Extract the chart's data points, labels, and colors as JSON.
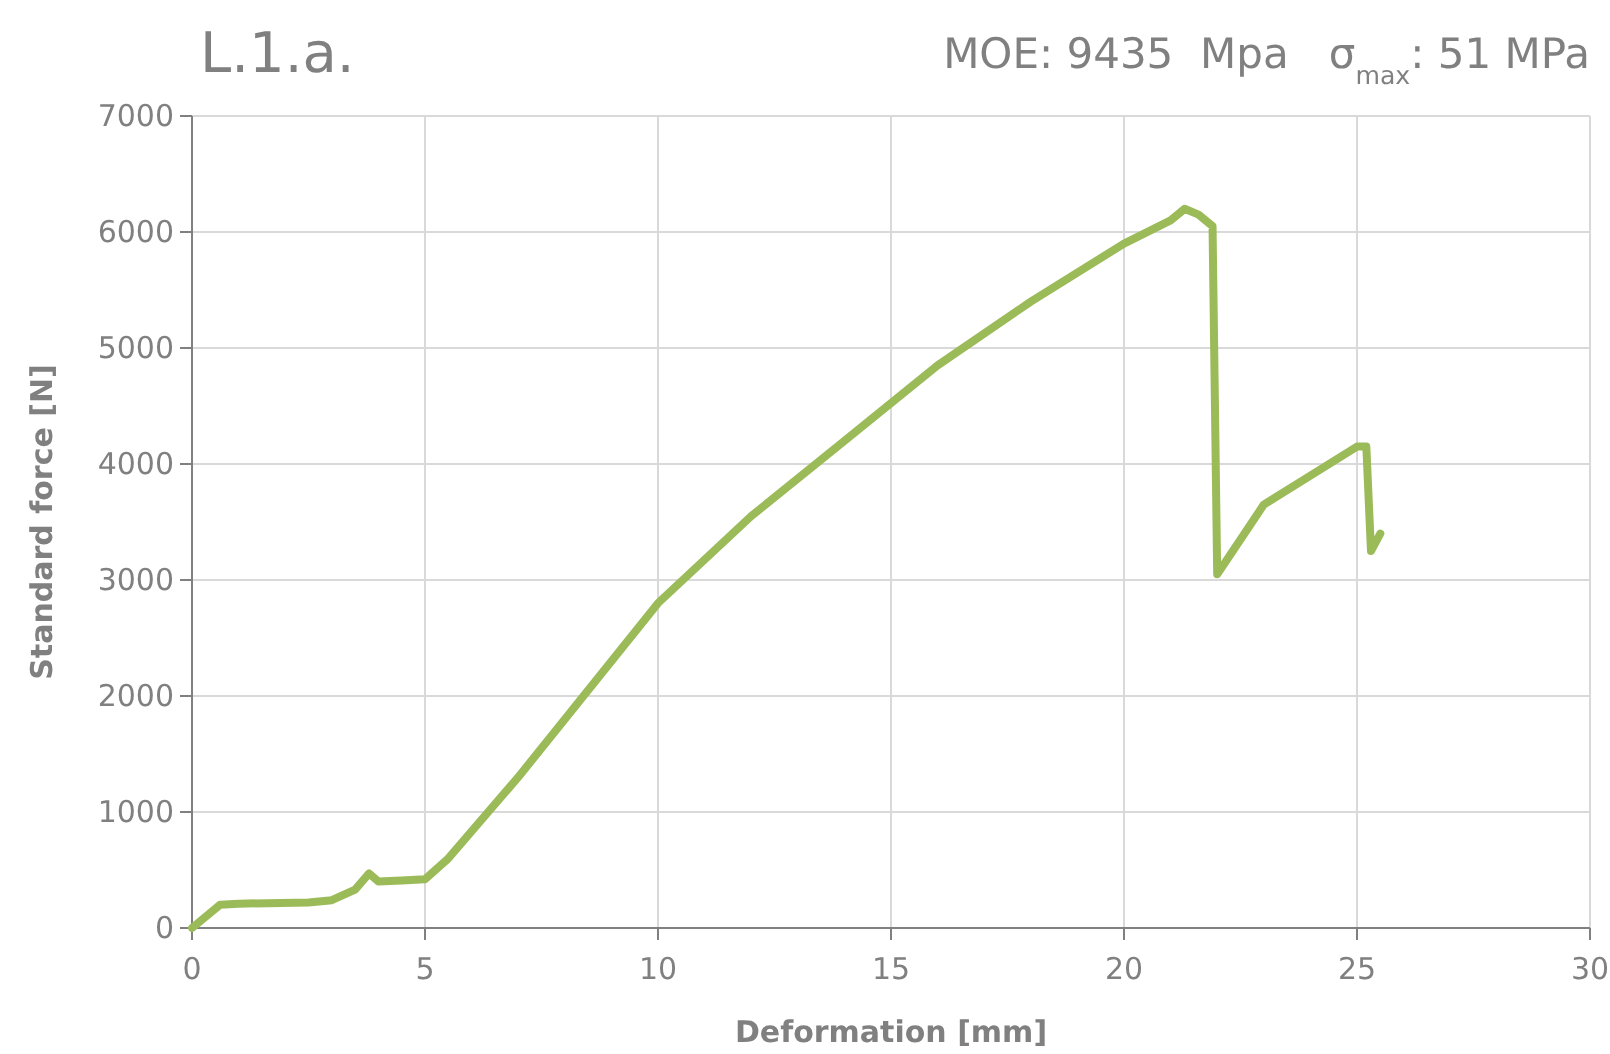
{
  "chart_data": {
    "type": "line",
    "title": "L.1.a.",
    "subtitle": "MOE: 9435  Mpa   σ$_{max}$: 51 MPa",
    "xlabel": "Deformation [mm]",
    "ylabel": "Standard force [N]",
    "x": [
      0,
      0.6,
      1,
      2.5,
      3,
      3.5,
      3.8,
      4,
      4.5,
      5,
      5.5,
      7,
      8,
      10,
      12,
      14,
      16,
      18,
      20,
      21,
      21.3,
      21.6,
      21.9,
      22,
      22.5,
      23,
      24,
      25,
      25.2,
      25.3,
      25.5
    ],
    "series": [
      {
        "color": "#9bbb59",
        "values": [
          0,
          200,
          210,
          220,
          240,
          330,
          470,
          400,
          410,
          420,
          600,
          1300,
          1800,
          2800,
          3550,
          4200,
          4850,
          5400,
          5900,
          6100,
          6200,
          6150,
          6050,
          3050,
          3350,
          3650,
          3900,
          4150,
          4150,
          3250,
          3400
        ]
      }
    ],
    "xlim": [
      0,
      30
    ],
    "xticks": [
      0,
      5,
      10,
      15,
      20,
      25,
      30
    ],
    "ylim": [
      0,
      7000
    ],
    "yticks": [
      0,
      1000,
      2000,
      3000,
      4000,
      5000,
      6000,
      7000
    ],
    "grid": true,
    "marker": "none",
    "line_style": "solid"
  }
}
